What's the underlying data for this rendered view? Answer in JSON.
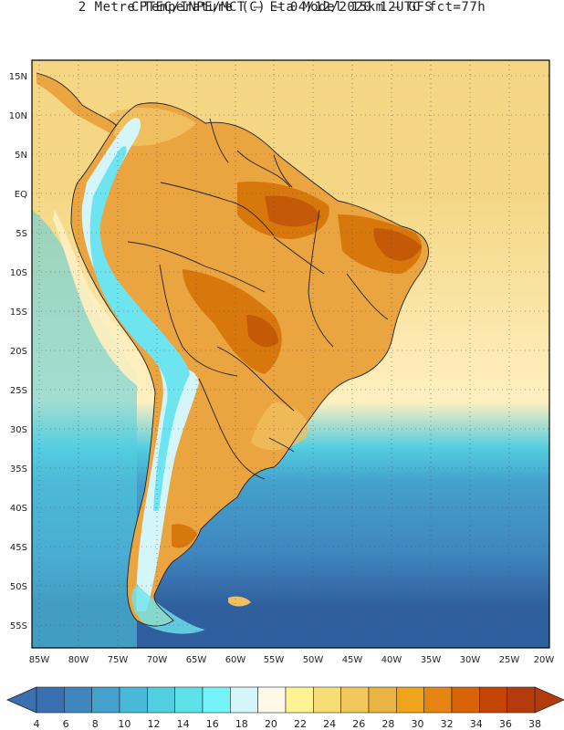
{
  "title_line1": "CPTEC/INPE/MCT –  Eta Model 15km – GFS",
  "title_line2": "2 Metre Temperature (C) – 04/12/2020 12UTC fct=77h",
  "lat_labels": [
    "15N",
    "10N",
    "5N",
    "EQ",
    "5S",
    "10S",
    "15S",
    "20S",
    "25S",
    "30S",
    "35S",
    "40S",
    "45S",
    "50S",
    "55S"
  ],
  "lon_labels": [
    "85W",
    "80W",
    "75W",
    "70W",
    "65W",
    "60W",
    "55W",
    "50W",
    "45W",
    "40W",
    "35W",
    "30W",
    "25W",
    "20W"
  ],
  "colorbar": {
    "ticks": [
      "4",
      "6",
      "8",
      "10",
      "12",
      "14",
      "16",
      "18",
      "20",
      "22",
      "24",
      "26",
      "28",
      "30",
      "32",
      "34",
      "36",
      "38"
    ],
    "colors": [
      "#3a6fb0",
      "#3f86bf",
      "#44a0cc",
      "#4ab8d8",
      "#53cde0",
      "#5ee0e8",
      "#74f4f8",
      "#d4f6fa",
      "#fff8e6",
      "#fff394",
      "#f8dc76",
      "#f2c85c",
      "#eab444",
      "#f0a41c",
      "#e68414",
      "#d96408",
      "#c44404",
      "#b43c0c"
    ]
  },
  "ocean_colors": {
    "tropical": "#f4d684",
    "subtropical": "#fff0c0",
    "cool": "#53cde0",
    "cold": "#44a0cc",
    "colder": "#3f86bf",
    "coldest": "#2f5f9e"
  },
  "land_colors": {
    "base": "#eaa440",
    "hot": "#d8780c",
    "hottest": "#c45a08",
    "mild": "#f0c060",
    "andes_cold": "#6ee4f0",
    "andes_cool": "#d4f6fa"
  }
}
